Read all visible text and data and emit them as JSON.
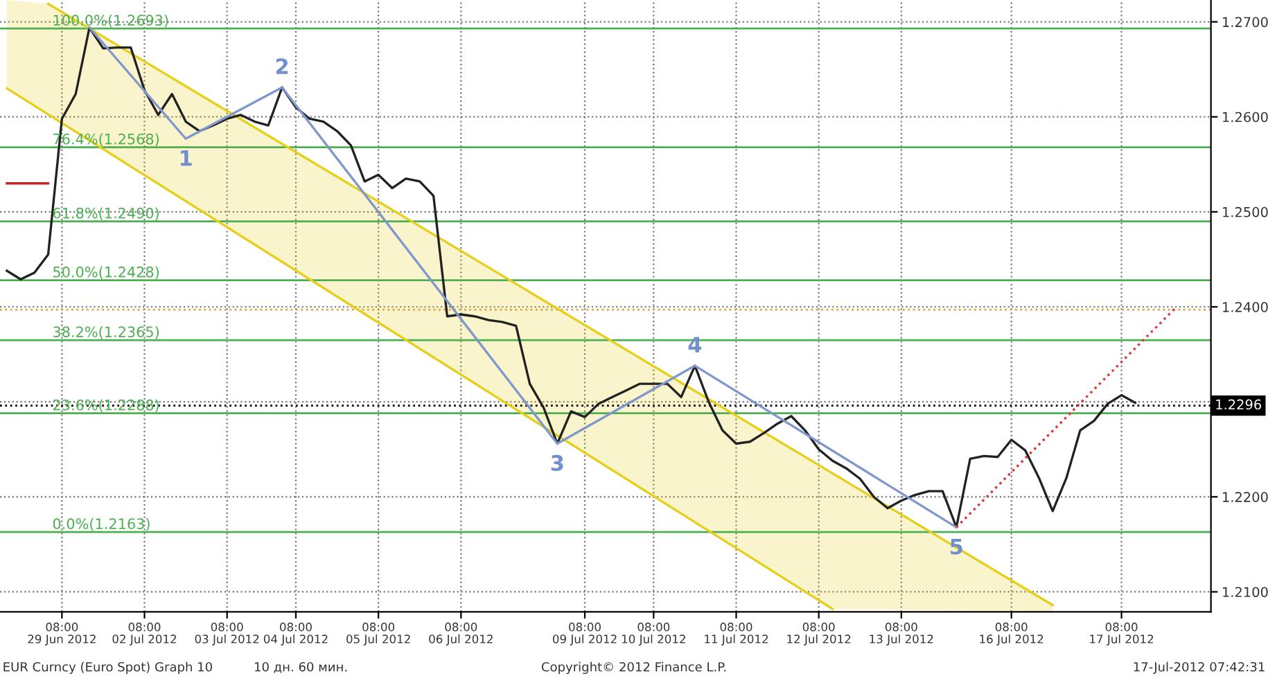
{
  "chart_data": {
    "type": "line",
    "categories": [
      null,
      null,
      null,
      null,
      "08:00\n29 Jun 2012",
      null,
      null,
      null,
      null,
      null,
      "08:00\n02 Jul 2012",
      null,
      null,
      null,
      null,
      null,
      "08:00\n03 Jul 2012",
      null,
      null,
      null,
      null,
      "08:00\n04 Jul 2012",
      null,
      null,
      null,
      null,
      null,
      "08:00\n05 Jul 2012",
      null,
      null,
      null,
      null,
      null,
      "08:00\n06 Jul 2012",
      null,
      null,
      null,
      null,
      null,
      null,
      null,
      null,
      "08:00\n09 Jul 2012",
      null,
      null,
      null,
      null,
      "08:00\n10 Jul 2012",
      null,
      null,
      null,
      null,
      null,
      "08:00\n11 Jul 2012",
      null,
      null,
      null,
      null,
      null,
      "08:00\n12 Jul 2012",
      null,
      null,
      null,
      null,
      null,
      "08:00\n13 Jul 2012",
      null,
      null,
      null,
      null,
      null,
      null,
      null,
      "08:00\n16 Jul 2012",
      null,
      null,
      null,
      null,
      null,
      null,
      null,
      "08:00\n17 Jul 2012",
      null,
      null,
      null,
      null,
      null,
      null
    ],
    "ylim": [
      1.2079,
      1.2723
    ],
    "yticks": [
      {
        "value": 1.21,
        "label": "1.2100"
      },
      {
        "value": 1.22,
        "label": "1.2200"
      },
      {
        "value": 1.23,
        "label": null
      },
      {
        "value": 1.24,
        "label": "1.2400"
      },
      {
        "value": 1.25,
        "label": "1.2500"
      },
      {
        "value": 1.26,
        "label": "1.2600"
      },
      {
        "value": 1.27,
        "label": "1.2700"
      }
    ],
    "grid": true,
    "legend": false,
    "marker": "none",
    "series": [
      {
        "color": "#e6cf1a",
        "values": [
          null,
          null,
          null,
          1.2719,
          null,
          null,
          null,
          null,
          null,
          null,
          null,
          null,
          null,
          null,
          null,
          null,
          null,
          null,
          null,
          null,
          null,
          null,
          null,
          null,
          null,
          null,
          null,
          null,
          null,
          null,
          null,
          null,
          null,
          null,
          null,
          null,
          null,
          null,
          null,
          null,
          null,
          null,
          null,
          null,
          null,
          null,
          null,
          null,
          null,
          null,
          null,
          null,
          null,
          null,
          null,
          null,
          null,
          null,
          null,
          null,
          null,
          null,
          null,
          null,
          null,
          null,
          null,
          null,
          null,
          null,
          null,
          null,
          null,
          null,
          null,
          null,
          1.2086,
          null,
          null,
          null,
          null,
          null,
          null,
          null,
          null,
          null,
          null,
          null
        ],
        "lower": [
          1.263,
          null,
          null,
          1.2603,
          null,
          null,
          null,
          null,
          null,
          null,
          null,
          null,
          null,
          null,
          null,
          null,
          null,
          null,
          null,
          null,
          null,
          null,
          null,
          null,
          null,
          null,
          null,
          null,
          null,
          null,
          null,
          null,
          null,
          null,
          null,
          null,
          null,
          null,
          null,
          null,
          null,
          null,
          null,
          null,
          null,
          null,
          null,
          null,
          null,
          null,
          null,
          null,
          null,
          null,
          null,
          null,
          null,
          null,
          null,
          null,
          1.2082,
          null,
          null,
          null,
          null,
          null,
          null,
          null,
          null,
          null,
          null,
          null,
          null,
          null,
          null,
          null,
          1.2079,
          null,
          null,
          null,
          null,
          null,
          null,
          null,
          null,
          null,
          null,
          null
        ],
        "upper": [
          1.2723,
          null,
          null,
          1.2719,
          null,
          null,
          null,
          null,
          null,
          null,
          null,
          null,
          null,
          null,
          null,
          null,
          null,
          null,
          null,
          null,
          null,
          null,
          null,
          null,
          null,
          null,
          null,
          null,
          null,
          null,
          null,
          null,
          null,
          null,
          null,
          null,
          null,
          null,
          null,
          null,
          null,
          null,
          null,
          null,
          null,
          null,
          null,
          null,
          null,
          null,
          null,
          null,
          null,
          null,
          null,
          null,
          null,
          null,
          null,
          null,
          1.2225,
          null,
          null,
          null,
          null,
          null,
          null,
          null,
          null,
          null,
          null,
          null,
          null,
          null,
          null,
          null,
          1.2086,
          null,
          null,
          null,
          null,
          null,
          null,
          null,
          null,
          null,
          null,
          null
        ]
      },
      {
        "color": "#e6cf1a",
        "values": [
          1.263,
          null,
          null,
          null,
          null,
          null,
          null,
          null,
          null,
          null,
          null,
          null,
          null,
          null,
          null,
          null,
          null,
          null,
          null,
          null,
          null,
          null,
          null,
          null,
          null,
          null,
          null,
          null,
          null,
          null,
          null,
          null,
          null,
          null,
          null,
          null,
          null,
          null,
          null,
          null,
          null,
          null,
          null,
          null,
          null,
          null,
          null,
          null,
          null,
          null,
          null,
          null,
          null,
          null,
          null,
          null,
          null,
          null,
          null,
          null,
          1.2082,
          null,
          null,
          null,
          null,
          null,
          null,
          null,
          null,
          null,
          null,
          null,
          null,
          null,
          null,
          null,
          null,
          null,
          null,
          null,
          null,
          null,
          null,
          null,
          null,
          null,
          null,
          null
        ]
      },
      {
        "color": "#cc2222",
        "values": [
          1.253,
          null,
          null,
          1.253,
          null,
          null,
          null,
          null,
          null,
          null,
          null,
          null,
          null,
          null,
          null,
          null,
          null,
          null,
          null,
          null,
          null,
          null,
          null,
          null,
          null,
          null,
          null,
          null,
          null,
          null,
          null,
          null,
          null,
          null,
          null,
          null,
          null,
          null,
          null,
          null,
          null,
          null,
          null,
          null,
          null,
          null,
          null,
          null,
          null,
          null,
          null,
          null,
          null,
          null,
          null,
          null,
          null,
          null,
          null,
          null,
          null,
          null,
          null,
          null,
          null,
          null,
          null,
          null,
          null,
          null,
          null,
          null,
          null,
          null,
          null,
          null,
          null,
          null,
          null,
          null,
          null,
          null,
          null,
          null,
          null,
          null,
          null,
          null
        ]
      },
      {
        "color": "#222222",
        "values": [
          1.2438,
          1.2429,
          1.2436,
          1.2455,
          1.2598,
          1.2624,
          1.2694,
          1.2672,
          1.2673,
          1.2673,
          1.2628,
          1.2602,
          1.2624,
          1.2595,
          1.2585,
          1.2591,
          1.2598,
          1.2602,
          1.2595,
          1.2591,
          1.2631,
          1.261,
          1.2598,
          1.2595,
          1.2585,
          1.257,
          1.2532,
          1.2539,
          1.2525,
          1.2535,
          1.2532,
          1.2517,
          1.239,
          1.2392,
          1.239,
          1.2386,
          1.2384,
          1.238,
          1.2319,
          1.2294,
          1.2256,
          1.229,
          1.2284,
          1.2298,
          1.2305,
          1.2312,
          1.2319,
          1.2319,
          1.2319,
          1.2305,
          1.2338,
          1.23,
          1.227,
          1.2256,
          1.2258,
          1.2267,
          1.2277,
          1.2285,
          1.227,
          1.225,
          1.2238,
          1.223,
          1.2219,
          1.22,
          1.2188,
          1.2196,
          1.2202,
          1.2206,
          1.2206,
          1.2168,
          1.224,
          1.2243,
          1.2242,
          1.226,
          1.2249,
          1.222,
          1.2185,
          1.222,
          1.227,
          1.228,
          1.2298,
          1.2307,
          1.2299,
          null,
          null,
          null,
          null,
          null
        ]
      },
      {
        "color": "#7f97cc",
        "values": [
          null,
          null,
          null,
          null,
          null,
          null,
          1.2694,
          null,
          null,
          null,
          null,
          null,
          null,
          1.2577,
          null,
          null,
          null,
          null,
          null,
          null,
          1.2631,
          null,
          null,
          null,
          null,
          null,
          null,
          null,
          null,
          null,
          null,
          null,
          null,
          null,
          null,
          null,
          null,
          null,
          null,
          null,
          1.2256,
          null,
          null,
          null,
          null,
          null,
          null,
          null,
          null,
          null,
          1.2338,
          null,
          null,
          null,
          null,
          null,
          null,
          null,
          null,
          null,
          null,
          null,
          null,
          null,
          null,
          null,
          null,
          null,
          null,
          1.2168,
          null,
          null,
          null,
          null,
          null,
          null,
          null,
          null,
          null,
          null,
          null,
          null,
          null,
          null,
          null,
          null,
          null,
          null
        ],
        "line_style": "solid"
      },
      {
        "color": "#dd3333",
        "line_style": "dotted",
        "values": [
          null,
          null,
          null,
          null,
          null,
          null,
          null,
          null,
          null,
          null,
          null,
          null,
          null,
          null,
          null,
          null,
          null,
          null,
          null,
          null,
          null,
          null,
          null,
          null,
          null,
          null,
          null,
          null,
          null,
          null,
          null,
          null,
          null,
          null,
          null,
          null,
          null,
          null,
          null,
          null,
          null,
          null,
          null,
          null,
          null,
          null,
          null,
          null,
          null,
          null,
          null,
          null,
          null,
          null,
          null,
          null,
          null,
          null,
          null,
          null,
          null,
          null,
          null,
          null,
          null,
          null,
          null,
          null,
          null,
          1.2168,
          null,
          null,
          null,
          null,
          null,
          null,
          null,
          null,
          null,
          null,
          null,
          null,
          null,
          null,
          null,
          1.24,
          null,
          null
        ]
      }
    ],
    "ref_lines": [
      {
        "axis": "y",
        "value": 1.2693,
        "label": "100.0%(1.2693)",
        "color": "#4caf50"
      },
      {
        "axis": "y",
        "value": 1.2568,
        "label": "76.4%(1.2568)",
        "color": "#4caf50"
      },
      {
        "axis": "y",
        "value": 1.249,
        "label": "61.8%(1.2490)",
        "color": "#4caf50"
      },
      {
        "axis": "y",
        "value": 1.2428,
        "label": "50.0%(1.2428)",
        "color": "#4caf50"
      },
      {
        "axis": "y",
        "value": 1.2365,
        "label": "38.2%(1.2365)",
        "color": "#4caf50"
      },
      {
        "axis": "y",
        "value": 1.2288,
        "label": "23.6%(1.2288)",
        "color": "#4caf50"
      },
      {
        "axis": "y",
        "value": 1.2163,
        "label": "0.0%(1.2163)",
        "color": "#4caf50"
      },
      {
        "axis": "y",
        "value": 1.2397,
        "label": null,
        "color": "#e0a040",
        "line_style": "dotted"
      },
      {
        "axis": "y",
        "value": 1.2296,
        "label": "1.2296",
        "color": "#000000",
        "line_style": "dotted"
      }
    ],
    "annotations": [
      {
        "text": "1",
        "y": 1.2577
      },
      {
        "text": "2",
        "y": 1.2631
      },
      {
        "text": "3",
        "y": 1.2256
      },
      {
        "text": "4",
        "y": 1.2338
      },
      {
        "text": "5",
        "y": 1.2168
      },
      "EUR Curncy (Euro Spot) Graph 10",
      "10 дн. 60 мин.",
      "Copyright© 2012 Finance L.P.",
      "17-Jul-2012 07:42:31"
    ]
  }
}
